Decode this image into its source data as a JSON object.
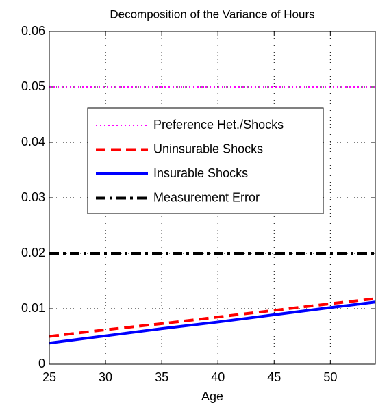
{
  "chart_data": {
    "type": "line",
    "title": "Decomposition of the Variance of Hours",
    "x_label": "Age",
    "x": [
      25,
      30,
      35,
      40,
      45,
      50,
      54
    ],
    "series": [
      {
        "name": "Preference Het./Shocks",
        "color": "#ff00ff",
        "line_style": "dotted",
        "values": [
          0.05,
          0.05,
          0.05,
          0.05,
          0.05,
          0.05,
          0.05
        ]
      },
      {
        "name": "Uninsurable Shocks",
        "color": "#ff0000",
        "line_style": "dashed",
        "values": [
          0.005,
          0.0062,
          0.0073,
          0.0085,
          0.0097,
          0.0109,
          0.0118
        ]
      },
      {
        "name": "Insurable Shocks",
        "color": "#0000ff",
        "line_style": "solid",
        "values": [
          0.0038,
          0.0051,
          0.0064,
          0.0076,
          0.0089,
          0.0102,
          0.0112
        ]
      },
      {
        "name": "Measurement Error",
        "color": "#000000",
        "line_style": "dashdot",
        "values": [
          0.02,
          0.02,
          0.02,
          0.02,
          0.02,
          0.02,
          0.02
        ]
      }
    ],
    "xlim": [
      25,
      54
    ],
    "xticks": [
      25,
      30,
      35,
      40,
      45,
      50
    ],
    "ylim": [
      0,
      0.06
    ],
    "yticks": [
      0,
      0.01,
      0.02,
      0.03,
      0.04,
      0.05,
      0.06
    ],
    "grid": true
  }
}
